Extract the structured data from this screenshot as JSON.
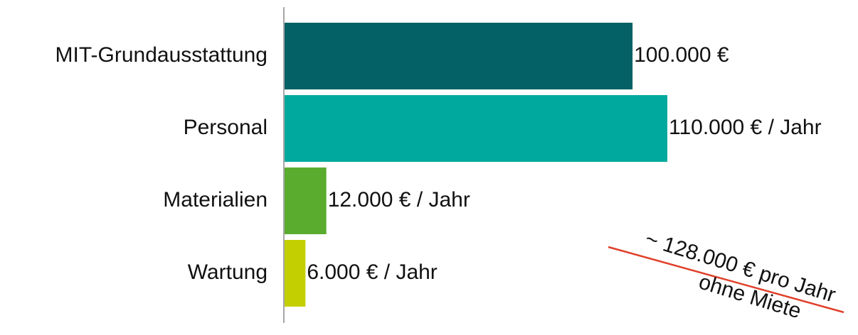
{
  "chart_data": {
    "type": "bar",
    "orientation": "horizontal",
    "categories": [
      "MIT-Grundausstattung",
      "Personal",
      "Materialien",
      "Wartung"
    ],
    "values": [
      100000,
      110000,
      12000,
      6000
    ],
    "value_labels": [
      "100.000 €",
      "110.000 € / Jahr",
      "12.000 € / Jahr",
      "6.000 € / Jahr"
    ],
    "colors": [
      "#046165",
      "#00a99d",
      "#5aac2e",
      "#c3cf00"
    ],
    "annotation": [
      "~ 128.000 € pro Jahr",
      "ohne Miete"
    ],
    "annotation_line_color": "#e0402a"
  }
}
